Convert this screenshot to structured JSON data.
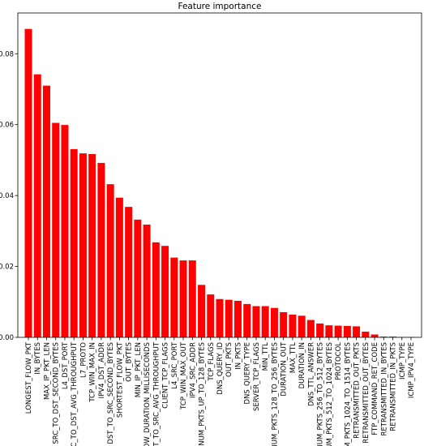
{
  "chart_data": {
    "type": "bar",
    "title": "Feature importance",
    "xlabel": "",
    "ylabel": "",
    "ylim": [
      0,
      0.0915
    ],
    "yticks": [
      0.0,
      0.02,
      0.04,
      0.06,
      0.08
    ],
    "ytick_labels": [
      "0.00",
      "0.02",
      "0.04",
      "0.06",
      "0.08"
    ],
    "bar_color": "#ff0000",
    "grid": false,
    "categories": [
      "LONGEST_FLOW_PKT",
      "IN_BYTES",
      "MAX_IP_PKT_LEN",
      "SRC_TO_DST_SECOND_BYTES",
      "L4_DST_PORT",
      "SRC_TO_DST_AVG_THROUGHPUT",
      "L7_PROTO",
      "TCP_WIN_MAX_IN",
      "IPV4_DST_ADDR",
      "DST_TO_SRC_SECOND_BYTES",
      "SHORTEST_FLOW_PKT",
      "OUT_BYTES",
      "MIN_IP_PKT_LEN",
      "FLOW_DURATION_MILLISECONDS",
      "DST_TO_SRC_AVG_THROUGHPUT",
      "CLIENT_TCP_FLAGS",
      "L4_SRC_PORT",
      "TCP_WIN_MAX_OUT",
      "IPV4_SRC_ADDR",
      "NUM_PKTS_UP_TO_128_BYTES",
      "TCP_FLAGS",
      "DNS_QUERY_ID",
      "OUT_PKTS",
      "IN_PKTS",
      "DNS_QUERY_TYPE",
      "SERVER_TCP_FLAGS",
      "MIN_TTL",
      "NUM_PKTS_128_TO_256_BYTES",
      "DURATION_OUT",
      "MAX_TTL",
      "DURATION_IN",
      "DNS_TTL_ANSWER",
      "NUM_PKTS_256_TO_512_BYTES",
      "NUM_PKTS_512_TO_1024_BYTES",
      "PROTOCOL",
      "NUM_PKTS_1024_TO_1514_BYTES",
      "RETRANSMITTED_OUT_PKTS",
      "RETRANSMITTED_OUT_BYTES",
      "FTP_COMMAND_RET_CODE",
      "RETRANSMITTED_IN_BYTES",
      "RETRANSMITTED_IN_PKTS",
      "ICMP_TYPE",
      "ICMP_IPV4_TYPE"
    ],
    "values": [
      0.087,
      0.0742,
      0.071,
      0.0605,
      0.0599,
      0.0531,
      0.0519,
      0.0517,
      0.0492,
      0.0432,
      0.0394,
      0.0368,
      0.0332,
      0.0318,
      0.0268,
      0.0258,
      0.0225,
      0.0217,
      0.0217,
      0.0148,
      0.0121,
      0.0108,
      0.0106,
      0.0103,
      0.0094,
      0.0088,
      0.0088,
      0.0083,
      0.0071,
      0.0064,
      0.0061,
      0.0049,
      0.0039,
      0.0034,
      0.0033,
      0.0032,
      0.0031,
      0.0016,
      0.0008,
      0.0002,
      0.0002,
      0.0001,
      0.0001
    ]
  }
}
